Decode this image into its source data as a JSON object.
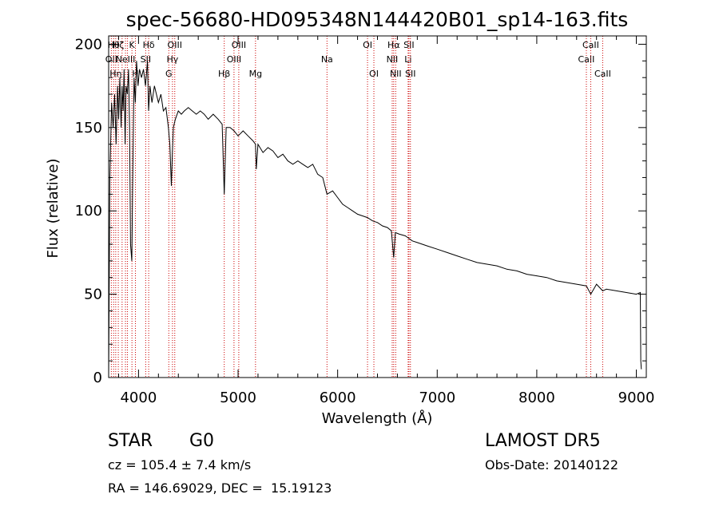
{
  "chart_data": {
    "type": "line",
    "title": "spec-56680-HD095348N144420B01_sp14-163.fits",
    "xlabel": "Wavelength (Å)",
    "ylabel": "Flux (relative)",
    "xlim": [
      3700,
      9100
    ],
    "ylim": [
      0,
      205
    ],
    "xticks": [
      4000,
      5000,
      6000,
      7000,
      8000,
      9000
    ],
    "yticks": [
      0,
      50,
      100,
      150,
      200
    ],
    "grid": false,
    "line_color": "#000000",
    "marker_color": "#cc0000",
    "series": [
      {
        "x": [
          3700,
          3712,
          3730,
          3745,
          3760,
          3775,
          3790,
          3800,
          3812,
          3825,
          3835,
          3845,
          3855,
          3865,
          3875,
          3888,
          3900,
          3910,
          3920,
          3933,
          3940,
          3955,
          3968,
          3980,
          3995,
          4010,
          4030,
          4050,
          4070,
          4090,
          4101,
          4115,
          4135,
          4160,
          4180,
          4200,
          4225,
          4250,
          4275,
          4300,
          4315,
          4330,
          4340,
          4350,
          4370,
          4400,
          4430,
          4460,
          4500,
          4540,
          4580,
          4620,
          4660,
          4700,
          4750,
          4800,
          4840,
          4861,
          4880,
          4920,
          4960,
          5000,
          5050,
          5100,
          5150,
          5175,
          5183,
          5200,
          5250,
          5300,
          5350,
          5400,
          5450,
          5500,
          5550,
          5600,
          5650,
          5700,
          5750,
          5800,
          5850,
          5893,
          5950,
          6000,
          6050,
          6100,
          6150,
          6200,
          6250,
          6300,
          6350,
          6400,
          6450,
          6500,
          6540,
          6563,
          6580,
          6620,
          6680,
          6750,
          6800,
          6900,
          7000,
          7100,
          7200,
          7300,
          7400,
          7500,
          7600,
          7700,
          7800,
          7900,
          8000,
          8100,
          8200,
          8300,
          8400,
          8498,
          8542,
          8600,
          8662,
          8700,
          8800,
          8900,
          9000,
          9040,
          9045,
          9050
        ],
        "y": [
          0,
          120,
          165,
          150,
          170,
          140,
          175,
          155,
          180,
          150,
          175,
          160,
          185,
          140,
          175,
          170,
          185,
          150,
          80,
          70,
          110,
          180,
          165,
          190,
          175,
          185,
          180,
          185,
          175,
          190,
          160,
          175,
          165,
          175,
          170,
          165,
          170,
          160,
          162,
          150,
          140,
          115,
          135,
          150,
          155,
          160,
          158,
          160,
          162,
          160,
          158,
          160,
          158,
          155,
          158,
          155,
          152,
          110,
          150,
          150,
          148,
          145,
          148,
          145,
          142,
          140,
          125,
          140,
          135,
          138,
          136,
          132,
          134,
          130,
          128,
          130,
          128,
          126,
          128,
          122,
          120,
          110,
          112,
          108,
          104,
          102,
          100,
          98,
          97,
          96,
          94,
          93,
          91,
          90,
          88,
          72,
          87,
          86,
          85,
          82,
          81,
          79,
          77,
          75,
          73,
          71,
          69,
          68,
          67,
          65,
          64,
          62,
          61,
          60,
          58,
          57,
          56,
          55,
          50,
          56,
          52,
          53,
          52,
          51,
          50,
          51,
          10,
          5
        ]
      }
    ],
    "line_markers": [
      {
        "x": 3727,
        "label": "OII",
        "row": 1
      },
      {
        "x": 3750,
        "label": "Hθ",
        "row": 0
      },
      {
        "x": 3771,
        "label": "Hη",
        "row": 2
      },
      {
        "x": 3797,
        "label": "Hζ",
        "row": 0
      },
      {
        "x": 3835,
        "label": "",
        "row": 0
      },
      {
        "x": 3869,
        "label": "NeIII",
        "row": 1
      },
      {
        "x": 3889,
        "label": "",
        "row": 0
      },
      {
        "x": 3934,
        "label": "K",
        "row": 0
      },
      {
        "x": 3969,
        "label": "H",
        "row": 2
      },
      {
        "x": 4072,
        "label": "SII",
        "row": 1
      },
      {
        "x": 4102,
        "label": "Hδ",
        "row": 0
      },
      {
        "x": 4304,
        "label": "G",
        "row": 2
      },
      {
        "x": 4341,
        "label": "Hγ",
        "row": 1
      },
      {
        "x": 4364,
        "label": "OIII",
        "row": 0
      },
      {
        "x": 4861,
        "label": "Hβ",
        "row": 2
      },
      {
        "x": 4959,
        "label": "OIII",
        "row": 1
      },
      {
        "x": 5007,
        "label": "OIII",
        "row": 0
      },
      {
        "x": 5175,
        "label": "Mg",
        "row": 2
      },
      {
        "x": 5893,
        "label": "Na",
        "row": 1
      },
      {
        "x": 6300,
        "label": "OI",
        "row": 0
      },
      {
        "x": 6364,
        "label": "OI",
        "row": 2
      },
      {
        "x": 6548,
        "label": "NII",
        "row": 1
      },
      {
        "x": 6563,
        "label": "Hα",
        "row": 0
      },
      {
        "x": 6583,
        "label": "NII",
        "row": 2
      },
      {
        "x": 6708,
        "label": "Li",
        "row": 1
      },
      {
        "x": 6716,
        "label": "SII",
        "row": 0
      },
      {
        "x": 6731,
        "label": "SII",
        "row": 2
      },
      {
        "x": 8498,
        "label": "CaII",
        "row": 1
      },
      {
        "x": 8542,
        "label": "CaII",
        "row": 0
      },
      {
        "x": 8662,
        "label": "CaII",
        "row": 2
      }
    ]
  },
  "info": {
    "class": "STAR",
    "subclass": "G0",
    "survey": "LAMOST DR5",
    "cz": "cz = 105.4 ± 7.4 km/s",
    "obs_date": "Obs-Date: 20140122",
    "radec": "RA = 146.69029, DEC =  15.19123"
  }
}
